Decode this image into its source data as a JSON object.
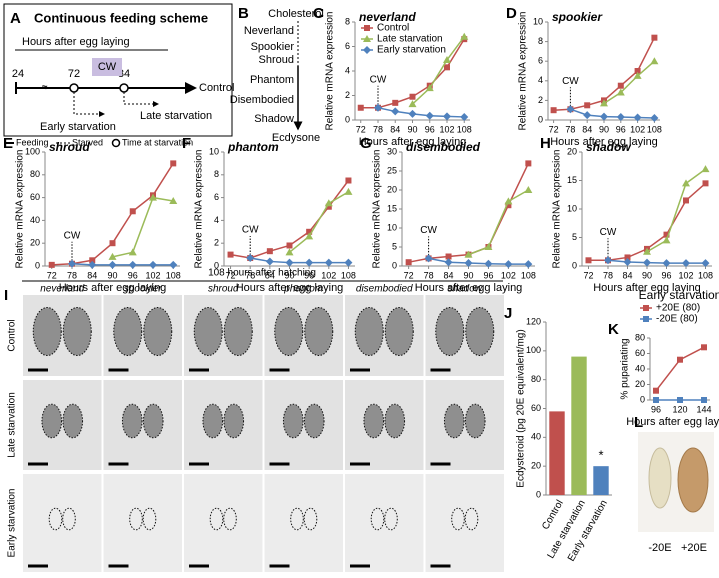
{
  "scheme": {
    "panel": "A",
    "title": "Continuous feeding scheme",
    "axis_label": "Hours after egg laying",
    "times": [
      "24",
      "72",
      "84"
    ],
    "window": "CW",
    "control": "Control",
    "late": "Late starvation",
    "early": "Early starvation",
    "legend": [
      "Feeding",
      "Starved",
      "Time at starvation"
    ]
  },
  "pathway": {
    "panel": "B",
    "steps": [
      "Cholesterol",
      "Neverland",
      "Spookier",
      "Shroud",
      "Phantom",
      "Disembodied",
      "Shadow",
      "Ecdysone"
    ]
  },
  "micrographs": {
    "panel": "I",
    "header": "108 hours after hatching",
    "columns": [
      "neverland",
      "spookier",
      "shroud",
      "phantom",
      "disembodied",
      "shadow"
    ],
    "rows": [
      "Control",
      "Late starvation",
      "Early starvation"
    ]
  },
  "photo": {
    "panel": "L",
    "labels": [
      "-20E",
      "+20E"
    ]
  },
  "chart_data": [
    {
      "type": "line",
      "panel": "C",
      "title": "neverland",
      "x_label": "Hours after egg laying",
      "y_label": "Relative mRNA expression",
      "annotation": "CW",
      "x": [
        72,
        78,
        84,
        90,
        96,
        102,
        108
      ],
      "xlim": [
        70,
        110
      ],
      "xticks": [
        72,
        78,
        84,
        90,
        96,
        102,
        108
      ],
      "ylim": [
        0,
        8
      ],
      "yticks": [
        0,
        2,
        4,
        6,
        8
      ],
      "series": [
        {
          "name": "Control",
          "color": "#c0504d",
          "marker": "square",
          "values": [
            1,
            1,
            1.4,
            1.9,
            2.8,
            4.3,
            6.6
          ]
        },
        {
          "name": "Late starvation",
          "color": "#9bbb59",
          "marker": "triangle",
          "values": [
            null,
            null,
            null,
            1.3,
            2.6,
            4.9,
            6.8
          ]
        },
        {
          "name": "Early starvation",
          "color": "#4f81bd",
          "marker": "diamond",
          "values": [
            null,
            1,
            0.7,
            0.5,
            0.35,
            0.3,
            0.25
          ]
        }
      ]
    },
    {
      "type": "line",
      "panel": "D",
      "title": "spookier",
      "x_label": "Hours after egg laying",
      "y_label": "Relative mRNA expression",
      "annotation": "CW",
      "x": [
        72,
        78,
        84,
        90,
        96,
        102,
        108
      ],
      "xlim": [
        70,
        110
      ],
      "xticks": [
        72,
        78,
        84,
        90,
        96,
        102,
        108
      ],
      "ylim": [
        0,
        10
      ],
      "yticks": [
        0,
        2,
        4,
        6,
        8,
        10
      ],
      "series": [
        {
          "color": "#c0504d",
          "marker": "square",
          "values": [
            1,
            1.1,
            1.5,
            2,
            3.5,
            5,
            8.4
          ]
        },
        {
          "color": "#9bbb59",
          "marker": "triangle",
          "values": [
            null,
            null,
            null,
            1.7,
            2.8,
            4.5,
            6
          ]
        },
        {
          "color": "#4f81bd",
          "marker": "diamond",
          "values": [
            null,
            1.1,
            0.5,
            0.35,
            0.3,
            0.25,
            0.2
          ]
        }
      ]
    },
    {
      "type": "line",
      "panel": "E",
      "title": "shroud",
      "x_label": "Hours after egg laying",
      "y_label": "Relative mRNA expression",
      "annotation": "CW",
      "x": [
        72,
        78,
        84,
        90,
        96,
        102,
        108
      ],
      "xlim": [
        70,
        110
      ],
      "xticks": [
        72,
        78,
        84,
        90,
        96,
        102,
        108
      ],
      "ylim": [
        0,
        100
      ],
      "yticks": [
        0,
        20,
        40,
        60,
        80,
        100
      ],
      "series": [
        {
          "color": "#c0504d",
          "marker": "square",
          "values": [
            1,
            2,
            5,
            20,
            48,
            62,
            90
          ]
        },
        {
          "color": "#9bbb59",
          "marker": "triangle",
          "values": [
            null,
            null,
            null,
            8,
            12,
            60,
            57
          ]
        },
        {
          "color": "#4f81bd",
          "marker": "diamond",
          "values": [
            null,
            2,
            1,
            1,
            1,
            1,
            1
          ]
        }
      ]
    },
    {
      "type": "line",
      "panel": "F",
      "title": "phantom",
      "x_label": "Hours after egg laying",
      "y_label": "Relative mRNA expression",
      "annotation": "CW",
      "x": [
        72,
        78,
        84,
        90,
        96,
        102,
        108
      ],
      "xlim": [
        70,
        110
      ],
      "xticks": [
        72,
        78,
        84,
        90,
        96,
        102,
        108
      ],
      "ylim": [
        0,
        10
      ],
      "yticks": [
        0,
        2,
        4,
        6,
        8,
        10
      ],
      "series": [
        {
          "color": "#c0504d",
          "marker": "square",
          "values": [
            1,
            0.7,
            1.3,
            1.8,
            3,
            5.2,
            7.5
          ]
        },
        {
          "color": "#9bbb59",
          "marker": "triangle",
          "values": [
            null,
            null,
            null,
            1.2,
            2.6,
            5.5,
            6.5
          ]
        },
        {
          "color": "#4f81bd",
          "marker": "diamond",
          "values": [
            null,
            0.7,
            0.4,
            0.3,
            0.3,
            0.3,
            0.3
          ]
        }
      ]
    },
    {
      "type": "line",
      "panel": "G",
      "title": "disembodied",
      "x_label": "Hours after egg laying",
      "y_label": "Relative mRNA expression",
      "annotation": "CW",
      "x": [
        72,
        78,
        84,
        90,
        96,
        102,
        108
      ],
      "xlim": [
        70,
        110
      ],
      "xticks": [
        72,
        78,
        84,
        90,
        96,
        102,
        108
      ],
      "ylim": [
        0,
        30
      ],
      "yticks": [
        0,
        5,
        10,
        15,
        20,
        25,
        30
      ],
      "series": [
        {
          "color": "#c0504d",
          "marker": "square",
          "values": [
            1,
            2,
            2.5,
            3,
            5,
            16,
            27
          ]
        },
        {
          "color": "#9bbb59",
          "marker": "triangle",
          "values": [
            null,
            null,
            null,
            3,
            5,
            17,
            20
          ]
        },
        {
          "color": "#4f81bd",
          "marker": "diamond",
          "values": [
            null,
            2,
            1,
            0.8,
            0.6,
            0.5,
            0.5
          ]
        }
      ]
    },
    {
      "type": "line",
      "panel": "H",
      "title": "shadow",
      "x_label": "Hours after egg laying",
      "y_label": "Relative mRNA expression",
      "annotation": "CW",
      "x": [
        72,
        78,
        84,
        90,
        96,
        102,
        108
      ],
      "xlim": [
        70,
        110
      ],
      "xticks": [
        72,
        78,
        84,
        90,
        96,
        102,
        108
      ],
      "ylim": [
        0,
        20
      ],
      "yticks": [
        0,
        5,
        10,
        15,
        20
      ],
      "series": [
        {
          "color": "#c0504d",
          "marker": "square",
          "values": [
            1,
            1,
            1.5,
            3,
            5.5,
            11.5,
            14.5
          ]
        },
        {
          "color": "#9bbb59",
          "marker": "triangle",
          "values": [
            null,
            null,
            null,
            2.5,
            4.5,
            14.5,
            17
          ]
        },
        {
          "color": "#4f81bd",
          "marker": "diamond",
          "values": [
            null,
            1,
            0.7,
            0.6,
            0.5,
            0.5,
            0.5
          ]
        }
      ]
    },
    {
      "type": "bar",
      "panel": "J",
      "y_label": "Ecdysteroid (pg 20E equivalent/mg)",
      "annotation": "*",
      "categories": [
        "Control",
        "Late starvation",
        "Early starvation"
      ],
      "values": [
        58,
        96,
        20
      ],
      "colors": [
        "#c0504d",
        "#9bbb59",
        "#4f81bd"
      ],
      "ylim": [
        0,
        120
      ],
      "yticks": [
        0,
        20,
        40,
        60,
        80,
        100,
        120
      ]
    },
    {
      "type": "line",
      "panel": "K",
      "title": "Early starvation",
      "x_label": "Hours after egg laying",
      "y_label": "% pupariating",
      "x": [
        96,
        120,
        144
      ],
      "xlim": [
        90,
        150
      ],
      "xticks": [
        96,
        120,
        144
      ],
      "ylim": [
        0,
        80
      ],
      "yticks": [
        0,
        20,
        40,
        60,
        80
      ],
      "series": [
        {
          "name": "+20E (80)",
          "color": "#c0504d",
          "marker": "square",
          "values": [
            12,
            52,
            68
          ]
        },
        {
          "name": "-20E (80)",
          "color": "#4f81bd",
          "marker": "square",
          "values": [
            0,
            0,
            0
          ]
        }
      ]
    }
  ]
}
